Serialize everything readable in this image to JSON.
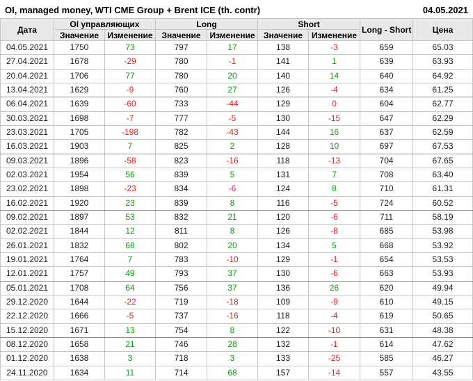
{
  "report_date": "04.05.2021",
  "colors": {
    "positive": "#0b9e0b",
    "negative": "#d92626",
    "header_bg": "#e9e9e9",
    "grid": "#c6c6c6",
    "grid_group_separator": "#8f8f8f"
  },
  "chart_data": {
    "type": "table",
    "title": "OI, managed money, WTI CME Group + Brent ICE (th. contr)",
    "headers": {
      "date": "Дата",
      "oi_group": "OI управляющих",
      "long_group": "Long",
      "short_group": "Short",
      "value": "Значение",
      "change": "Изменение",
      "long_short": "Long - Short",
      "price": "Цена"
    },
    "column_keys": [
      "date",
      "oi-value",
      "oi-change",
      "long-value",
      "long-change",
      "short-value",
      "short-change",
      "long-minus-short",
      "price"
    ],
    "change_column_indexes": [
      2,
      4,
      6
    ],
    "group_breaks_after_rows": [
      4,
      8,
      12,
      17,
      21
    ],
    "rows": [
      [
        "04.05.2021",
        1750,
        73,
        797,
        17,
        138,
        -3,
        659,
        "65.03"
      ],
      [
        "27.04.2021",
        1678,
        -29,
        780,
        -1,
        141,
        1,
        639,
        "63.93"
      ],
      [
        "20.04.2021",
        1706,
        77,
        780,
        20,
        140,
        14,
        640,
        "64.92"
      ],
      [
        "13.04.2021",
        1629,
        -9,
        760,
        27,
        126,
        -4,
        634,
        "61.25"
      ],
      [
        "06.04.2021",
        1639,
        -60,
        733,
        -44,
        129,
        0,
        604,
        "62.77"
      ],
      [
        "30.03.2021",
        1698,
        -7,
        777,
        -5,
        130,
        -15,
        647,
        "62.29"
      ],
      [
        "23.03.2021",
        1705,
        -198,
        782,
        -43,
        144,
        16,
        637,
        "62.59"
      ],
      [
        "16.03.2021",
        1903,
        7,
        825,
        2,
        128,
        10,
        697,
        "67.53"
      ],
      [
        "09.03.2021",
        1896,
        -58,
        823,
        -16,
        118,
        -13,
        704,
        "67.65"
      ],
      [
        "02.03.2021",
        1954,
        56,
        839,
        5,
        131,
        7,
        708,
        "63.40"
      ],
      [
        "23.02.2021",
        1898,
        -23,
        834,
        -6,
        124,
        8,
        710,
        "61.31"
      ],
      [
        "16.02.2021",
        1920,
        23,
        839,
        8,
        116,
        -5,
        724,
        "60.52"
      ],
      [
        "09.02.2021",
        1897,
        53,
        832,
        21,
        120,
        -6,
        711,
        "58.19"
      ],
      [
        "02.02.2021",
        1844,
        12,
        811,
        8,
        126,
        -8,
        685,
        "53.98"
      ],
      [
        "26.01.2021",
        1832,
        68,
        802,
        20,
        134,
        5,
        668,
        "53.92"
      ],
      [
        "19.01.2021",
        1764,
        7,
        783,
        -10,
        129,
        -1,
        654,
        "53.53"
      ],
      [
        "12.01.2021",
        1757,
        49,
        793,
        37,
        130,
        -6,
        663,
        "53.93"
      ],
      [
        "05.01.2021",
        1708,
        64,
        756,
        37,
        136,
        26,
        620,
        "49.94"
      ],
      [
        "29.12.2020",
        1644,
        -22,
        719,
        -18,
        109,
        -9,
        610,
        "49.15"
      ],
      [
        "22.12.2020",
        1666,
        -5,
        737,
        -16,
        118,
        -4,
        619,
        "50.65"
      ],
      [
        "15.12.2020",
        1671,
        13,
        754,
        8,
        122,
        -10,
        631,
        "48.38"
      ],
      [
        "08.12.2020",
        1658,
        21,
        746,
        28,
        132,
        -1,
        614,
        "47.62"
      ],
      [
        "01.12.2020",
        1638,
        3,
        718,
        3,
        133,
        -25,
        585,
        "46.27"
      ],
      [
        "24.11.2020",
        1634,
        11,
        714,
        68,
        157,
        -14,
        557,
        "43.55"
      ]
    ]
  }
}
